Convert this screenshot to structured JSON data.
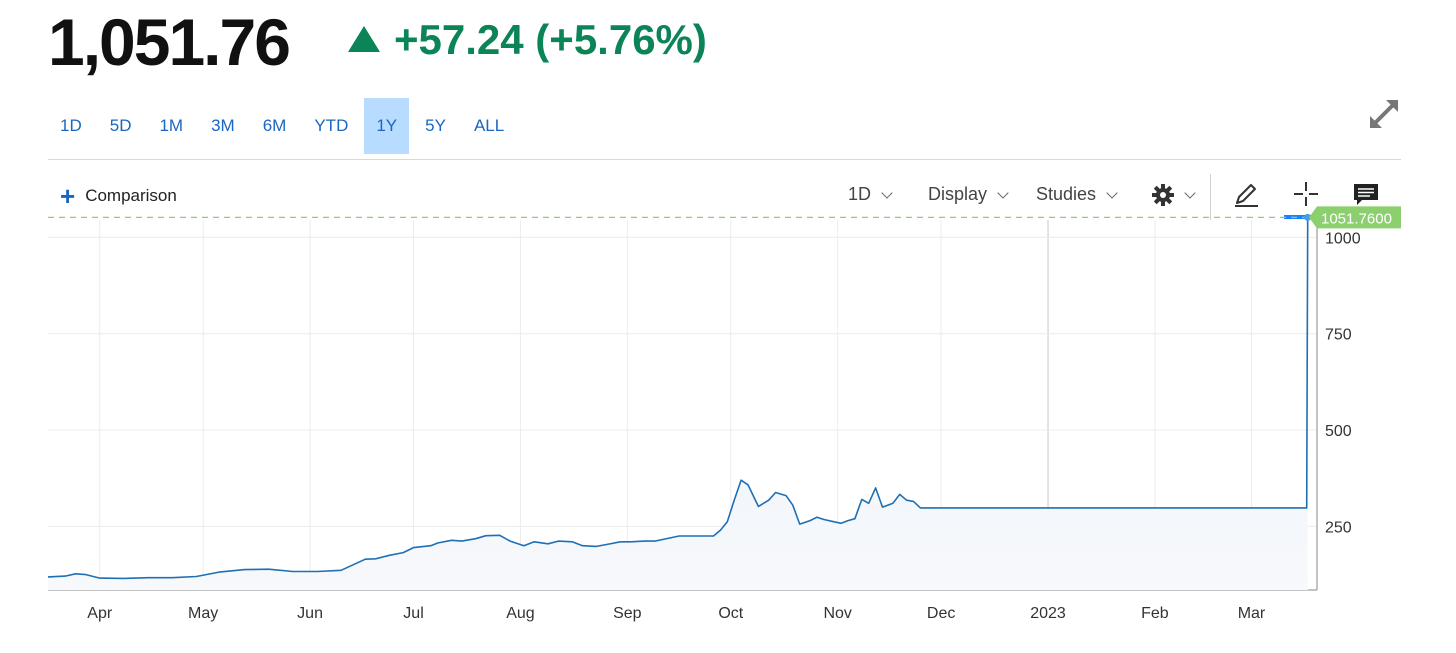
{
  "quote": {
    "price": "1,051.76",
    "change": "+57.24 (+5.76%)",
    "change_color": "#0b8457"
  },
  "ranges": [
    "1D",
    "5D",
    "1M",
    "3M",
    "6M",
    "YTD",
    "1Y",
    "5Y",
    "ALL"
  ],
  "active_range": "1Y",
  "toolbar": {
    "comparison": "Comparison",
    "interval": "1D",
    "display": "Display",
    "studies": "Studies",
    "icons": [
      "plus-icon",
      "gear-icon",
      "pencil-icon",
      "crosshair-icon",
      "comment-icon",
      "expand-icon"
    ]
  },
  "chart_data": {
    "type": "area",
    "last_value_label": "1051.7600",
    "last_value": 1051.76,
    "line_color": "#1f6fb5",
    "last_value_color": "#8ccf6f",
    "y_ticks": [
      250,
      500,
      750,
      1000
    ],
    "y_tick_labels": [
      "250",
      "500",
      "750",
      "1000"
    ],
    "ylim": [
      85,
      1045
    ],
    "x_tick_labels": [
      "Apr",
      "May",
      "Jun",
      "Jul",
      "Aug",
      "Sep",
      "Oct",
      "Nov",
      "Dec",
      "2023",
      "Feb",
      "Mar"
    ],
    "x_ticks": [
      "2022-04-01",
      "2022-05-01",
      "2022-06-01",
      "2022-07-01",
      "2022-08-01",
      "2022-09-01",
      "2022-10-01",
      "2022-11-01",
      "2022-12-01",
      "2023-01-01",
      "2023-02-01",
      "2023-03-01"
    ],
    "xlim": [
      "2022-03-17",
      "2023-03-20"
    ],
    "grid": true,
    "series": [
      {
        "x": [
          "2022-03-17",
          "2022-03-22",
          "2022-03-25",
          "2022-03-28",
          "2022-04-01",
          "2022-04-08",
          "2022-04-15",
          "2022-04-22",
          "2022-04-29",
          "2022-05-06",
          "2022-05-13",
          "2022-05-20",
          "2022-05-27",
          "2022-06-03",
          "2022-06-10",
          "2022-06-17",
          "2022-06-20",
          "2022-06-24",
          "2022-06-28",
          "2022-07-01",
          "2022-07-06",
          "2022-07-08",
          "2022-07-12",
          "2022-07-15",
          "2022-07-19",
          "2022-07-22",
          "2022-07-26",
          "2022-07-29",
          "2022-08-02",
          "2022-08-05",
          "2022-08-09",
          "2022-08-12",
          "2022-08-16",
          "2022-08-19",
          "2022-08-23",
          "2022-08-26",
          "2022-08-30",
          "2022-09-02",
          "2022-09-06",
          "2022-09-09",
          "2022-09-16",
          "2022-09-23",
          "2022-09-26",
          "2022-09-28",
          "2022-09-30",
          "2022-10-02",
          "2022-10-04",
          "2022-10-06",
          "2022-10-09",
          "2022-10-12",
          "2022-10-14",
          "2022-10-17",
          "2022-10-19",
          "2022-10-21",
          "2022-10-24",
          "2022-10-26",
          "2022-10-28",
          "2022-10-31",
          "2022-11-02",
          "2022-11-04",
          "2022-11-06",
          "2022-11-08",
          "2022-11-10",
          "2022-11-12",
          "2022-11-14",
          "2022-11-17",
          "2022-11-19",
          "2022-11-21",
          "2022-11-23",
          "2022-11-25",
          "2023-01-10",
          "2023-02-20",
          "2023-03-17",
          "2023-03-18"
        ],
        "y": [
          119,
          121,
          127,
          125,
          116,
          115,
          117,
          117,
          120,
          132,
          138,
          139,
          133,
          133,
          136,
          165,
          166,
          175,
          182,
          195,
          200,
          207,
          214,
          212,
          218,
          226,
          227,
          212,
          200,
          210,
          205,
          212,
          210,
          200,
          198,
          203,
          210,
          210,
          212,
          212,
          225,
          225,
          225,
          240,
          262,
          318,
          370,
          358,
          302,
          318,
          338,
          330,
          305,
          256,
          265,
          274,
          268,
          262,
          258,
          265,
          270,
          320,
          310,
          350,
          300,
          310,
          333,
          318,
          315,
          298,
          298,
          298,
          298,
          1051.76
        ]
      }
    ]
  }
}
